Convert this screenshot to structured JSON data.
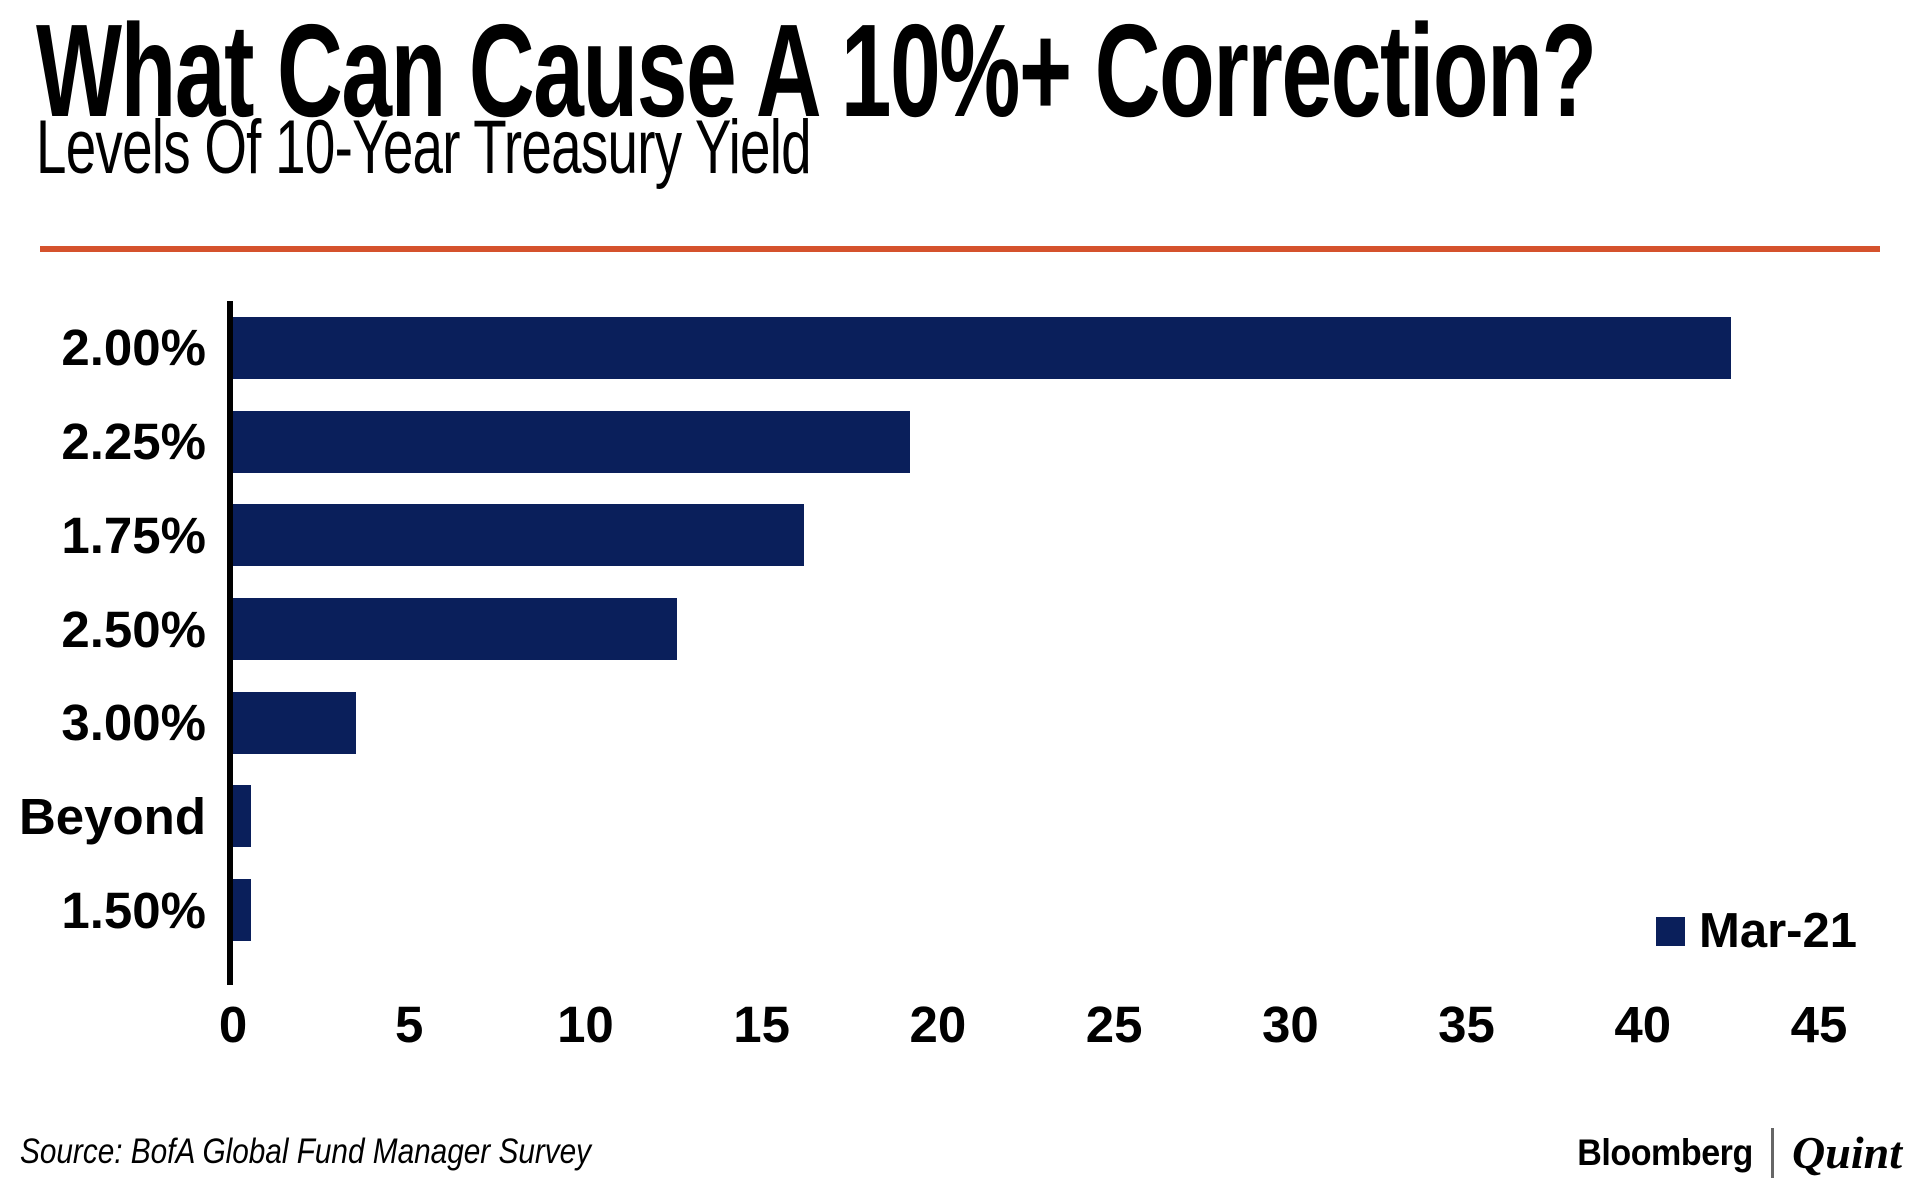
{
  "header": {
    "title": "What Can Cause A 10%+ Correction?",
    "subtitle": "Levels Of 10-Year Treasury Yield"
  },
  "colors": {
    "bar": "#0A1F5B",
    "accent_line": "#D5522D",
    "axis": "#000000"
  },
  "chart_data": {
    "type": "bar",
    "orientation": "horizontal",
    "title": "What Can Cause A 10%+ Correction?",
    "subtitle": "Levels Of 10-Year Treasury Yield",
    "categories": [
      "2.00%",
      "2.25%",
      "1.75%",
      "2.50%",
      "3.00%",
      "Beyond",
      "1.50%"
    ],
    "series": [
      {
        "name": "Mar-21",
        "values": [
          42.5,
          19.2,
          16.2,
          12.6,
          3.5,
          0.5,
          0.5
        ]
      }
    ],
    "xlim": [
      0,
      45
    ],
    "xticks": [
      0,
      5,
      10,
      15,
      20,
      25,
      30,
      35,
      40,
      45
    ],
    "grid": false,
    "legend_position": "bottom-right"
  },
  "footer": {
    "source": "Source: BofA Global Fund Manager Survey",
    "brand_primary": "Bloomberg",
    "brand_secondary": "Quint"
  }
}
